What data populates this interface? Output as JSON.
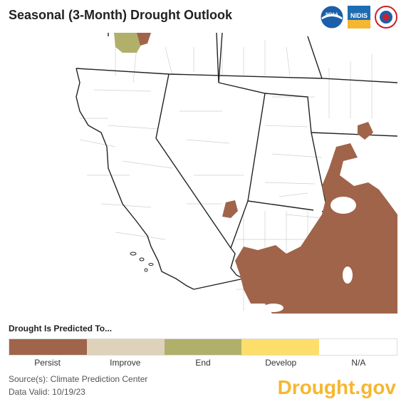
{
  "header": {
    "title": "Seasonal (3-Month) Drought Outlook",
    "logos": [
      {
        "name": "noaa-logo-icon",
        "text": "NOAA"
      },
      {
        "name": "nidis-logo-icon",
        "text": "NIDIS"
      },
      {
        "name": "nws-logo-icon",
        "text": ""
      }
    ]
  },
  "legend": {
    "title": "Drought Is Predicted To...",
    "items": [
      {
        "label": "Persist",
        "color": "#a0644a"
      },
      {
        "label": "Improve",
        "color": "#ded2bb"
      },
      {
        "label": "End",
        "color": "#b1b06a"
      },
      {
        "label": "Develop",
        "color": "#fede6a"
      },
      {
        "label": "N/A",
        "color": "#ffffff"
      }
    ]
  },
  "footer": {
    "source": "Source(s): Climate Prediction Center",
    "valid": "Data Valid: 10/19/23",
    "brand": "Drought.gov"
  },
  "map": {
    "region": "Western United States",
    "colors": {
      "persist": "#a0644a",
      "end": "#b1b06a",
      "border": "#222222",
      "county": "#cfcfcf"
    }
  }
}
